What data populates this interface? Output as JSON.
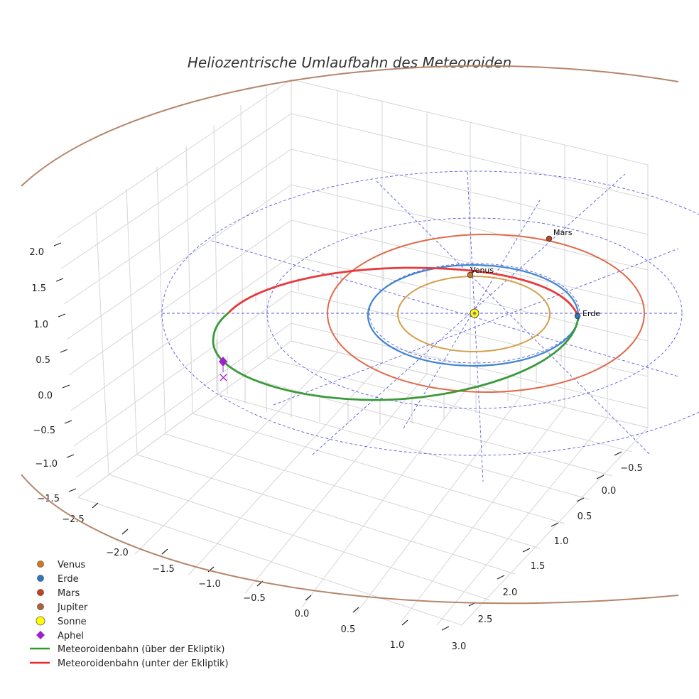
{
  "chart_data": {
    "type": "3d-orbit",
    "title": "Heliozentrische Umlaufbahn des Meteoroiden",
    "z_ticks": [
      "2.0",
      "1.5",
      "1.0",
      "0.5",
      "0.0",
      "−0.5",
      "−1.0",
      "−1.5"
    ],
    "x_ticks": [
      "−2.5",
      "−2.0",
      "−1.5",
      "−1.0",
      "−0.5",
      "0.0",
      "0.5",
      "1.0"
    ],
    "y_ticks": [
      "−0.5",
      "0.0",
      "0.5",
      "1.0",
      "1.5",
      "2.0",
      "2.5",
      "3.0"
    ],
    "colors": {
      "venus": "#d4a04c",
      "earth": "#3f86cf",
      "mars": "#e06a4a",
      "jupiter": "#b5856a",
      "sun": "#ffff00",
      "aphel": "#9f1fcf",
      "above": "#3a9a3a",
      "below": "#e83a3a",
      "grid_ref": "#5a5ae0"
    },
    "planets": [
      {
        "id": "venus",
        "label": "Venus",
        "orbit_radius_au": 0.72
      },
      {
        "id": "earth",
        "label": "Erde",
        "orbit_radius_au": 1.0
      },
      {
        "id": "mars",
        "label": "Mars",
        "orbit_radius_au": 1.52
      },
      {
        "id": "jupiter",
        "label": "Jupiter",
        "orbit_radius_au": 5.2
      }
    ],
    "legend": [
      {
        "label": "Venus",
        "marker": "dot",
        "color": "#d4791c"
      },
      {
        "label": "Erde",
        "marker": "dot",
        "color": "#2a78c2"
      },
      {
        "label": "Mars",
        "marker": "dot",
        "color": "#c8401a"
      },
      {
        "label": "Jupiter",
        "marker": "dot",
        "color": "#b0603a"
      },
      {
        "label": "Sonne",
        "marker": "sun",
        "color": "#ffff00"
      },
      {
        "label": "Aphel",
        "marker": "diamond",
        "color": "#9f1fcf"
      },
      {
        "label": "Meteoroidenbahn (über der Ekliptik)",
        "marker": "line",
        "color": "#3a9a3a"
      },
      {
        "label": "Meteoroidenbahn (unter der Ekliptik)",
        "marker": "line",
        "color": "#e83a3a"
      }
    ]
  }
}
